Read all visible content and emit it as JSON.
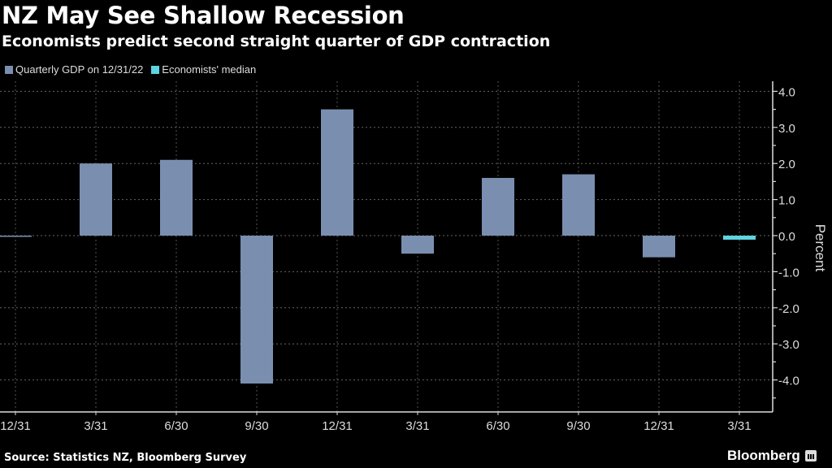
{
  "chart_data": {
    "type": "bar",
    "title": "NZ May See Shallow Recession",
    "subtitle": "Economists predict second straight quarter of GDP contraction",
    "xlabel": "",
    "ylabel": "Percent",
    "ylim": [
      -4.5,
      4.0
    ],
    "yticks": [
      4.0,
      3.0,
      2.0,
      1.0,
      0.0,
      -1.0,
      -2.0,
      -3.0,
      -4.0
    ],
    "ytick_labels": [
      "4.0",
      "3.0",
      "2.0",
      "1.0",
      "0.0",
      "-1.0",
      "-2.0",
      "-3.0",
      "-4.0"
    ],
    "y_axis_side": "right",
    "grid": true,
    "legend_position": "top-left",
    "categories": [
      "12/31",
      "3/31",
      "6/30",
      "9/30",
      "12/31",
      "3/31",
      "6/30",
      "9/30",
      "12/31",
      "3/31"
    ],
    "series": [
      {
        "name": "Quarterly GDP on 12/31/22",
        "color": "#7a8fb0",
        "values": [
          0.0,
          2.0,
          2.1,
          -4.1,
          3.5,
          -0.5,
          1.6,
          1.7,
          -0.6,
          null
        ]
      },
      {
        "name": "Economists' median",
        "color": "#5fd3e0",
        "values": [
          null,
          null,
          null,
          null,
          null,
          null,
          null,
          null,
          null,
          -0.1
        ]
      }
    ]
  },
  "header": {
    "title": "NZ May See Shallow Recession",
    "subtitle": "Economists predict second straight quarter of GDP contraction"
  },
  "legend": [
    {
      "label": "Quarterly GDP on 12/31/22",
      "color": "#7a8fb0"
    },
    {
      "label": "Economists' median",
      "color": "#5fd3e0"
    }
  ],
  "footer": {
    "source": "Source: Statistics NZ, Bloomberg Survey",
    "brand": "Bloomberg"
  }
}
